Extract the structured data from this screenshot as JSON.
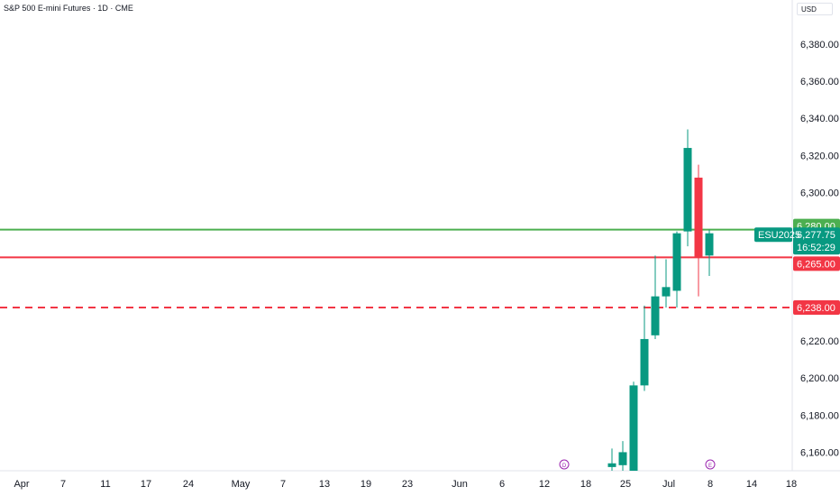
{
  "header": {
    "title": "S&P 500 E-mini Futures · 1D · CME",
    "currency": "USD"
  },
  "chart_data": {
    "type": "candlestick",
    "ylim": [
      6150,
      6395
    ],
    "y_ticks": [
      {
        "value": 6160,
        "label": "6,160.00"
      },
      {
        "value": 6180,
        "label": "6,180.00"
      },
      {
        "value": 6200,
        "label": "6,200.00"
      },
      {
        "value": 6220,
        "label": "6,220.00"
      },
      {
        "value": 6300,
        "label": "6,300.00"
      },
      {
        "value": 6320,
        "label": "6,320.00"
      },
      {
        "value": 6340,
        "label": "6,340.00"
      },
      {
        "value": 6360,
        "label": "6,360.00"
      },
      {
        "value": 6380,
        "label": "6,380.00"
      }
    ],
    "x_ticks": [
      "Apr",
      "7",
      "11",
      "17",
      "24",
      "May",
      "7",
      "13",
      "19",
      "23",
      "Jun",
      "6",
      "12",
      "18",
      "25",
      "Jul",
      "8",
      "14",
      "18"
    ],
    "candles": [
      {
        "slot": 0,
        "open": 6152,
        "high": 6162,
        "low": 6150,
        "close": 6154
      },
      {
        "slot": 1,
        "open": 6153,
        "high": 6166,
        "low": 6150,
        "close": 6160
      },
      {
        "slot": 2,
        "open": 6150,
        "high": 6198,
        "low": 6150,
        "close": 6196
      },
      {
        "slot": 3,
        "open": 6196,
        "high": 6239,
        "low": 6193,
        "close": 6221
      },
      {
        "slot": 4,
        "open": 6223,
        "high": 6266,
        "low": 6221,
        "close": 6244
      },
      {
        "slot": 5,
        "open": 6244,
        "high": 6264,
        "low": 6238,
        "close": 6249
      },
      {
        "slot": 6,
        "open": 6247,
        "high": 6279,
        "low": 6238,
        "close": 6278
      },
      {
        "slot": 7,
        "open": 6279,
        "high": 6334,
        "low": 6271,
        "close": 6324
      },
      {
        "slot": 8,
        "open": 6308,
        "high": 6315,
        "low": 6244,
        "close": 6265
      },
      {
        "slot": 9,
        "open": 6266,
        "high": 6280,
        "low": 6255,
        "close": 6278
      }
    ],
    "levels": [
      {
        "value": 6280,
        "label": "6,280.00",
        "color": "#4caf50",
        "style": "solid"
      },
      {
        "value": 6265,
        "label": "6,265.00",
        "color": "#f23645",
        "style": "solid"
      },
      {
        "value": 6238,
        "label": "6,238.00",
        "color": "#f23645",
        "style": "dashed"
      }
    ],
    "current": {
      "symbol": "ESU2025",
      "price": 6277.75,
      "price_label": "6,277.75",
      "countdown": "16:52:29",
      "color": "#089981"
    },
    "event_markers": [
      {
        "near_tick": "12",
        "glyph": "D"
      },
      {
        "near_tick": "8",
        "glyph": "E"
      }
    ],
    "colors": {
      "up": "#089981",
      "down": "#f23645",
      "grid_text": "#131722",
      "marker": "#9c27b0"
    },
    "grid": false
  }
}
